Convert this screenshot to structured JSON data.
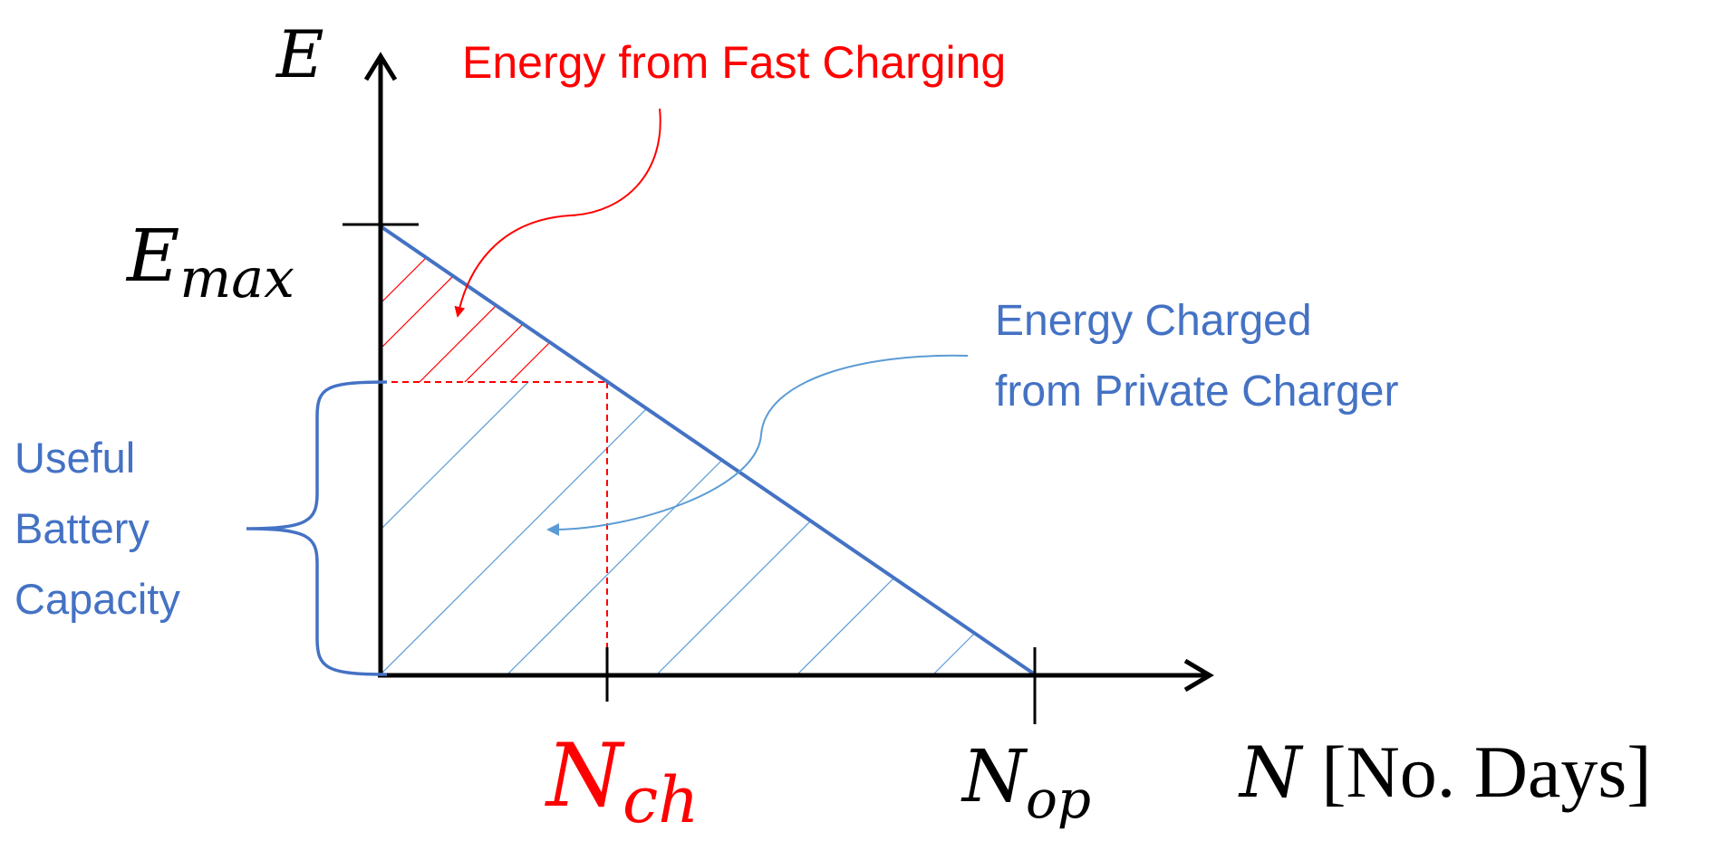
{
  "axes": {
    "y_symbol": "E",
    "x_symbol": "N",
    "x_unit": "[No. Days]"
  },
  "ticks": {
    "emax_main": "E",
    "emax_sub": "max",
    "nch_main": "N",
    "nch_sub": "ch",
    "nop_main": "N",
    "nop_sub": "op"
  },
  "annotations": {
    "fast_charging": "Energy from Fast Charging",
    "private_charger_line1": "Energy Charged",
    "private_charger_line2": "from Private Charger",
    "useful_line1": "Useful",
    "useful_line2": "Battery",
    "useful_line3": "Capacity"
  },
  "colors": {
    "axis": "#000000",
    "blue": "#4472C4",
    "light_blue": "#5B9BD5",
    "red": "#FF0000"
  }
}
